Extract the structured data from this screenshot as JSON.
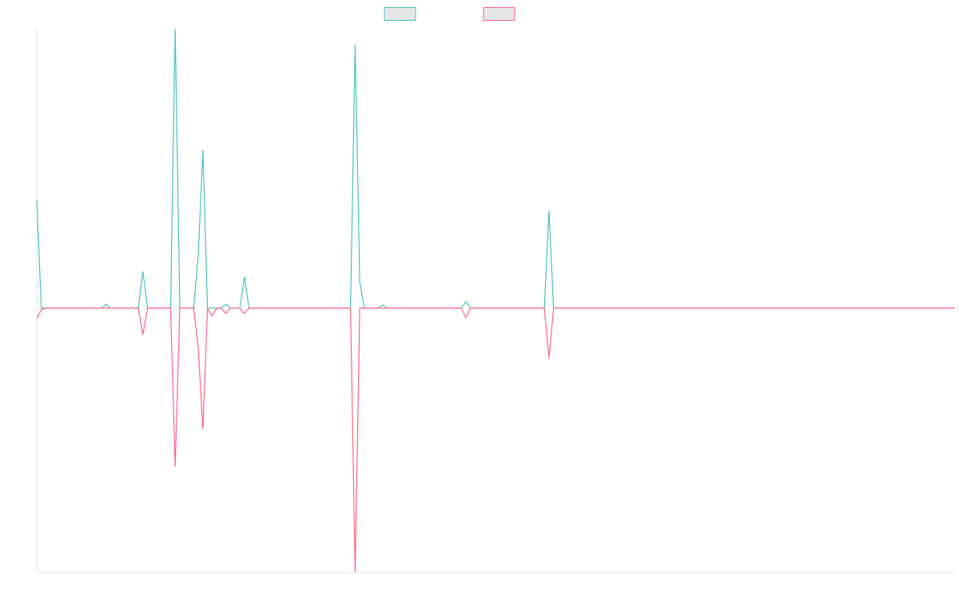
{
  "chart_data": {
    "type": "line",
    "title": "",
    "xlabel": "",
    "ylabel": "",
    "grid": false,
    "legend_position": "top-center",
    "x_count": 200,
    "ylim": [
      -1,
      1.06
    ],
    "series": [
      {
        "color": "#4bc0c0",
        "legend_fill": "#e6e6e6",
        "spikes": [
          {
            "i": 0,
            "v": 0.41
          },
          {
            "i": 1,
            "v": 0.0
          },
          {
            "i": 15,
            "v": 0.015
          },
          {
            "i": 23,
            "v": 0.14
          },
          {
            "i": 30,
            "v": 1.21
          },
          {
            "i": 35,
            "v": 0.2
          },
          {
            "i": 36,
            "v": 0.6
          },
          {
            "i": 41,
            "v": 0.015
          },
          {
            "i": 45,
            "v": 0.12
          },
          {
            "i": 69,
            "v": 1.0
          },
          {
            "i": 70,
            "v": 0.1
          },
          {
            "i": 75,
            "v": 0.012
          },
          {
            "i": 93,
            "v": 0.025
          },
          {
            "i": 111,
            "v": 0.37
          }
        ]
      },
      {
        "color": "#ff6384",
        "legend_fill": "#e6e6e6",
        "spikes": [
          {
            "i": 0,
            "v": -0.04
          },
          {
            "i": 1,
            "v": -0.005
          },
          {
            "i": 23,
            "v": -0.1
          },
          {
            "i": 30,
            "v": -0.6
          },
          {
            "i": 35,
            "v": -0.15
          },
          {
            "i": 36,
            "v": -0.46
          },
          {
            "i": 38,
            "v": -0.03
          },
          {
            "i": 41,
            "v": -0.02
          },
          {
            "i": 45,
            "v": -0.02
          },
          {
            "i": 69,
            "v": -1.0
          },
          {
            "i": 93,
            "v": -0.035
          },
          {
            "i": 111,
            "v": -0.19
          }
        ]
      }
    ]
  }
}
